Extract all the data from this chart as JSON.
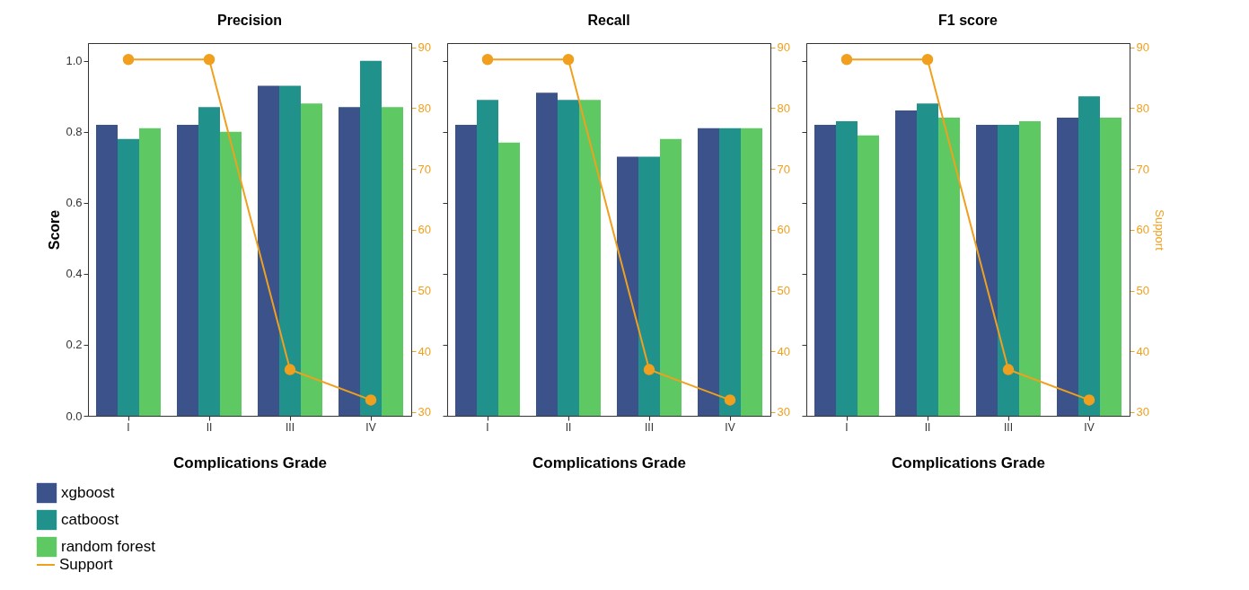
{
  "chart_data": [
    {
      "type": "bar",
      "title": "Precision",
      "xlabel": "Complications Grade",
      "ylabel": "Score",
      "categories": [
        "I",
        "II",
        "III",
        "IV"
      ],
      "ylim": [
        0,
        1.05
      ],
      "yticks": [
        {
          "value": 0,
          "label": "0.0"
        },
        0.2,
        0.4,
        0.6,
        0.8,
        {
          "value": 1,
          "label": "1.0"
        }
      ],
      "y2lim": [
        29.4,
        90.7
      ],
      "y2ticks": [
        30,
        40,
        50,
        60,
        70,
        80,
        90
      ],
      "legend": "bottom left",
      "series": [
        {
          "name": "xgboost",
          "color": "#3b528b",
          "values": [
            0.82,
            0.82,
            0.93,
            0.87
          ]
        },
        {
          "name": "catboost",
          "color": "#21918c",
          "values": [
            0.78,
            0.87,
            0.93,
            1.0
          ]
        },
        {
          "name": "random forest",
          "color": "#5ec962",
          "values": [
            0.81,
            0.8,
            0.88,
            0.87
          ]
        },
        {
          "name": "Support",
          "type": "line",
          "axis": "y2",
          "marker": "circle",
          "color": "#f0a01e",
          "values": [
            88,
            88,
            37,
            32
          ]
        }
      ]
    },
    {
      "type": "bar",
      "title": "Recall",
      "xlabel": "Complications Grade",
      "categories": [
        "I",
        "II",
        "III",
        "IV"
      ],
      "ylim": [
        0,
        1.05
      ],
      "y2lim": [
        29.4,
        90.7
      ],
      "y2ticks": [
        30,
        40,
        50,
        60,
        70,
        80,
        90
      ],
      "tick_labels": [
        "x",
        "y2"
      ],
      "series": [
        {
          "color": "#3b528b",
          "values": [
            0.82,
            0.91,
            0.73,
            0.81
          ]
        },
        {
          "color": "#21918c",
          "values": [
            0.89,
            0.89,
            0.73,
            0.81
          ]
        },
        {
          "color": "#5ec962",
          "values": [
            0.77,
            0.89,
            0.78,
            0.81
          ]
        },
        {
          "type": "line",
          "axis": "y2",
          "marker": "circle",
          "color": "#f0a01e",
          "values": [
            88,
            88,
            37,
            32
          ]
        }
      ]
    },
    {
      "type": "bar",
      "title": "F1 score",
      "xlabel": "Complications Grade",
      "y2label": "Support",
      "categories": [
        "I",
        "II",
        "III",
        "IV"
      ],
      "ylim": [
        0,
        1.05
      ],
      "y2lim": [
        29.4,
        90.7
      ],
      "y2ticks": [
        30,
        40,
        50,
        60,
        70,
        80,
        90
      ],
      "tick_labels": [
        "x",
        "y2"
      ],
      "series": [
        {
          "color": "#3b528b",
          "values": [
            0.82,
            0.86,
            0.82,
            0.84
          ]
        },
        {
          "color": "#21918c",
          "values": [
            0.83,
            0.88,
            0.82,
            0.9
          ]
        },
        {
          "color": "#5ec962",
          "values": [
            0.79,
            0.84,
            0.83,
            0.84
          ]
        },
        {
          "type": "line",
          "axis": "y2",
          "marker": "circle",
          "color": "#f0a01e",
          "values": [
            88,
            88,
            37,
            32
          ]
        }
      ]
    }
  ]
}
